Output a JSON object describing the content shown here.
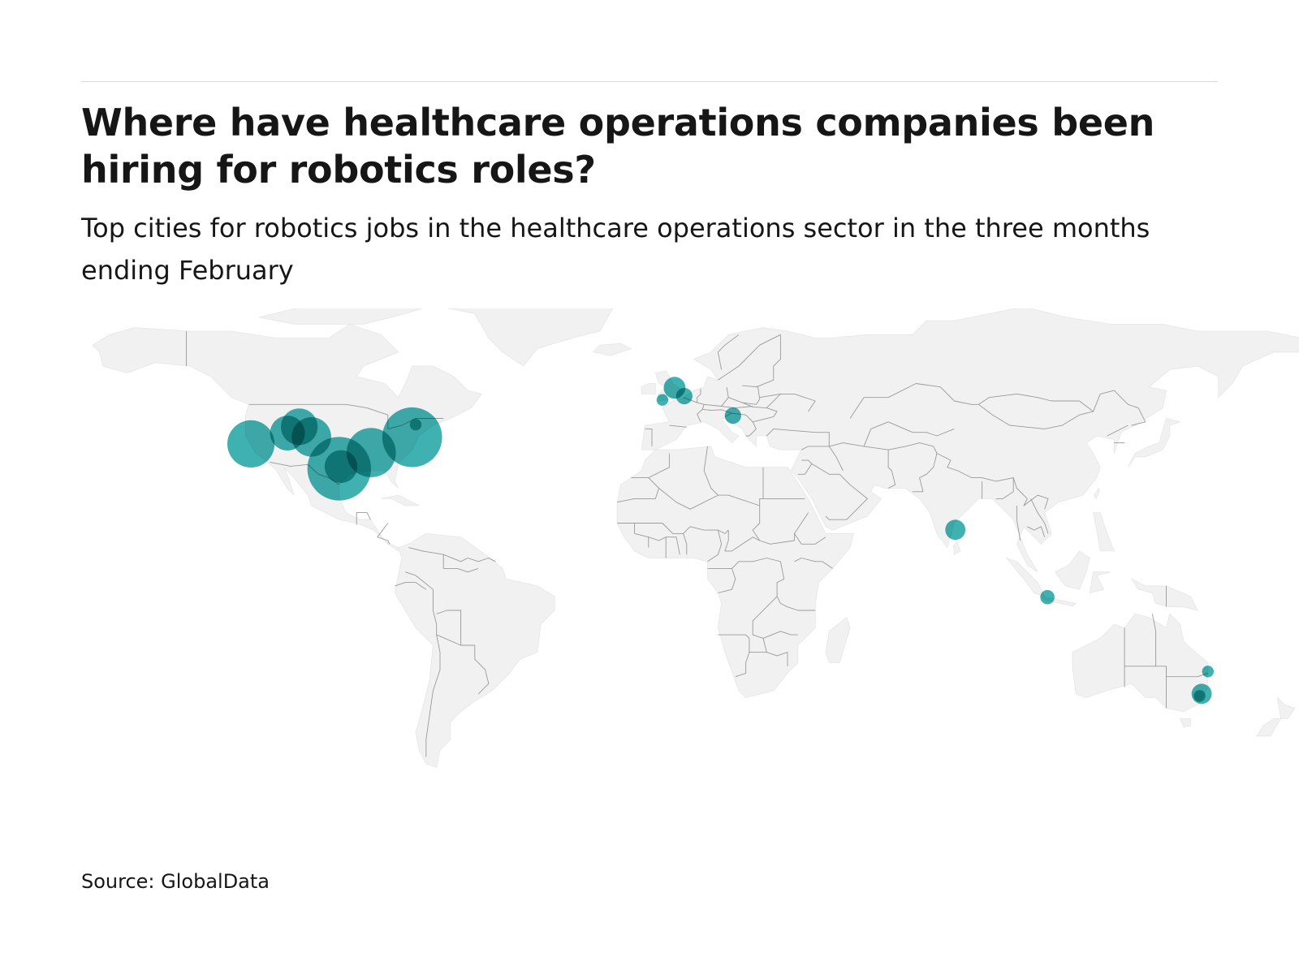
{
  "header": {
    "title": "Where have healthcare operations companies been hiring for robotics roles?",
    "subtitle": "Top cities for robotics jobs in the healthcare operations sector in the three months ending February"
  },
  "footer": {
    "source": "Source: GlobalData"
  },
  "map": {
    "land_color": "#f1f1f1",
    "border_color": "#9a9a9a",
    "bubble_color": "#1fa3a3",
    "bubble_opacity": 0.85,
    "bubbles": [
      {
        "lon": -122.4,
        "lat": 37.7,
        "size": 3.3
      },
      {
        "lon": -111.9,
        "lat": 40.8,
        "size": 1.8
      },
      {
        "lon": -105.0,
        "lat": 39.7,
        "size": 2.3
      },
      {
        "lon": -108.5,
        "lat": 42.6,
        "size": 2.0
      },
      {
        "lon": -97.0,
        "lat": 30.6,
        "size": 6.0
      },
      {
        "lon": -96.5,
        "lat": 31.2,
        "size": 1.6
      },
      {
        "lon": -87.8,
        "lat": 35.2,
        "size": 3.6
      },
      {
        "lon": -76.0,
        "lat": 39.6,
        "size": 5.3
      },
      {
        "lon": -75.0,
        "lat": 43.2,
        "size": 0.2
      },
      {
        "lon": -0.5,
        "lat": 53.8,
        "size": 0.7
      },
      {
        "lon": 2.3,
        "lat": 51.4,
        "size": 0.4
      },
      {
        "lon": -4.0,
        "lat": 50.3,
        "size": 0.2
      },
      {
        "lon": 16.3,
        "lat": 45.8,
        "size": 0.4
      },
      {
        "lon": 80.3,
        "lat": 13.1,
        "size": 0.6
      },
      {
        "lon": 106.8,
        "lat": -6.2,
        "size": 0.3
      },
      {
        "lon": 153.0,
        "lat": -27.5,
        "size": 0.2
      },
      {
        "lon": 151.2,
        "lat": -33.9,
        "size": 0.6
      },
      {
        "lon": 150.6,
        "lat": -34.5,
        "size": 0.2
      }
    ]
  }
}
